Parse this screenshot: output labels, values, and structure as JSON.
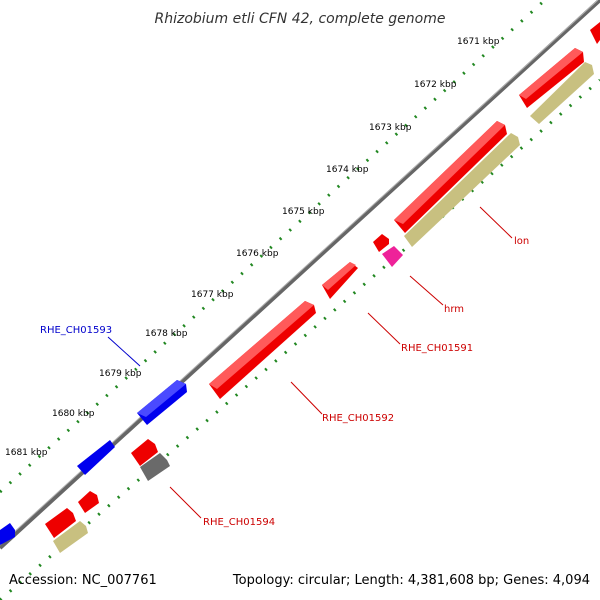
{
  "title": "Rhizobium etli CFN 42, complete genome",
  "ruler": {
    "ticks": [
      {
        "label": "1671 kbp"
      },
      {
        "label": "1672 kbp"
      },
      {
        "label": "1673 kbp"
      },
      {
        "label": "1674 kbp"
      },
      {
        "label": "1675 kbp"
      },
      {
        "label": "1676 kbp"
      },
      {
        "label": "1677 kbp"
      },
      {
        "label": "1678 kbp"
      },
      {
        "label": "1679 kbp"
      },
      {
        "label": "1680 kbp"
      },
      {
        "label": "1681 kbp"
      }
    ]
  },
  "gene_labels": [
    {
      "text": "RHE_CH01593",
      "color": "#0000cc"
    },
    {
      "text": "lon",
      "color": "#cc0000"
    },
    {
      "text": "hrm",
      "color": "#cc0000"
    },
    {
      "text": "RHE_CH01591",
      "color": "#cc0000"
    },
    {
      "text": "RHE_CH01592",
      "color": "#cc0000"
    },
    {
      "text": "RHE_CH01594",
      "color": "#cc0000"
    }
  ],
  "colors": {
    "backbone": "#808080",
    "ruler_dots": "#228822",
    "forward_gene": "#0000ee",
    "reverse_gene": "#ee0000",
    "rna_gene": "#c8c080",
    "pseudo_gene": "#707070",
    "other_gene": "#ee2299"
  },
  "footer": {
    "accession": "Accession: NC_007761",
    "topology": "Topology: circular; Length: 4,381,608 bp; Genes: 4,094"
  }
}
